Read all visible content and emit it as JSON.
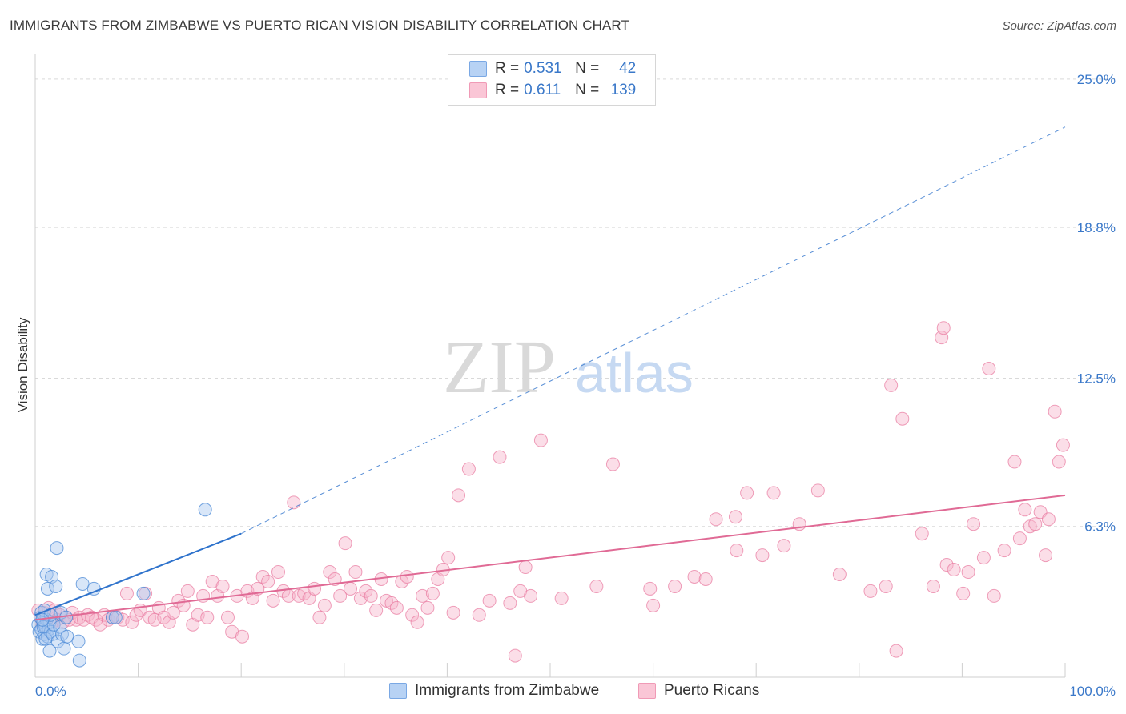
{
  "title": "IMMIGRANTS FROM ZIMBABWE VS PUERTO RICAN VISION DISABILITY CORRELATION CHART",
  "source": "Source: ZipAtlas.com",
  "watermark": {
    "zip": "ZIP",
    "atlas": "atlas"
  },
  "colors": {
    "blue": "#4a88d6",
    "blue_fill": "#a8c8f0",
    "blue_line": "#2f73cc",
    "pink": "#e8789e",
    "pink_fill": "#f6b6cb",
    "pink_line": "#e06a95",
    "tick_label": "#3a78c9",
    "grid": "#d9d9d9"
  },
  "legend": {
    "rows": [
      {
        "r_label": "R =",
        "r_value": "0.531",
        "n_label": "N =",
        "n_value": "42"
      },
      {
        "r_label": "R =",
        "r_value": "0.611",
        "n_label": "N =",
        "n_value": "139"
      }
    ]
  },
  "bottom_legend": [
    "Immigrants from Zimbabwe",
    "Puerto Ricans"
  ],
  "chart_data": {
    "type": "scatter",
    "title": "IMMIGRANTS FROM ZIMBABWE VS PUERTO RICAN VISION DISABILITY CORRELATION CHART",
    "xlabel": "",
    "ylabel": "Vision Disability",
    "xlim": [
      0,
      100
    ],
    "ylim": [
      0,
      25.9
    ],
    "x_tick_labels": [
      "0.0%",
      "100.0%"
    ],
    "y_ticks": [
      6.3,
      12.5,
      18.8,
      25.0
    ],
    "y_tick_labels": [
      "6.3%",
      "12.5%",
      "18.8%",
      "25.0%"
    ],
    "series": [
      {
        "name": "Immigrants from Zimbabwe",
        "R": 0.531,
        "N": 42,
        "trend": {
          "x0": 0,
          "y0": 2.6,
          "x1": 20,
          "y1": 6.0,
          "dashed_to_x": 100,
          "dashed_to_y": 23.0
        },
        "points": [
          [
            0.3,
            2.2
          ],
          [
            0.4,
            1.9
          ],
          [
            0.5,
            2.5
          ],
          [
            0.6,
            2.0
          ],
          [
            0.7,
            1.6
          ],
          [
            0.8,
            2.3
          ],
          [
            0.9,
            1.8
          ],
          [
            1.0,
            2.1
          ],
          [
            1.1,
            2.4
          ],
          [
            1.2,
            1.7
          ],
          [
            1.3,
            2.0
          ],
          [
            1.4,
            2.3
          ],
          [
            1.5,
            1.9
          ],
          [
            0.6,
            2.7
          ],
          [
            0.8,
            2.1
          ],
          [
            1.0,
            1.6
          ],
          [
            1.2,
            3.7
          ],
          [
            1.1,
            4.3
          ],
          [
            1.4,
            1.1
          ],
          [
            1.6,
            4.2
          ],
          [
            1.7,
            1.8
          ],
          [
            1.8,
            2.2
          ],
          [
            2.0,
            3.8
          ],
          [
            2.1,
            5.4
          ],
          [
            2.2,
            1.5
          ],
          [
            2.4,
            2.1
          ],
          [
            2.5,
            2.7
          ],
          [
            2.6,
            1.8
          ],
          [
            2.8,
            1.2
          ],
          [
            3.0,
            2.5
          ],
          [
            3.1,
            1.7
          ],
          [
            4.2,
            1.5
          ],
          [
            4.3,
            0.7
          ],
          [
            4.6,
            3.9
          ],
          [
            5.7,
            3.7
          ],
          [
            7.5,
            2.5
          ],
          [
            7.8,
            2.5
          ],
          [
            10.5,
            3.5
          ],
          [
            16.5,
            7.0
          ],
          [
            0.9,
            2.8
          ],
          [
            1.5,
            2.6
          ],
          [
            0.7,
            2.4
          ]
        ]
      },
      {
        "name": "Puerto Ricans",
        "R": 0.611,
        "N": 139,
        "trend": {
          "x0": 0,
          "y0": 2.4,
          "x1": 100,
          "y1": 7.6
        },
        "points": [
          [
            0.3,
            2.8
          ],
          [
            0.5,
            2.5
          ],
          [
            0.7,
            2.2
          ],
          [
            0.9,
            2.7
          ],
          [
            1.1,
            2.4
          ],
          [
            1.3,
            2.9
          ],
          [
            1.5,
            2.6
          ],
          [
            1.7,
            2.3
          ],
          [
            1.9,
            2.8
          ],
          [
            2.1,
            2.4
          ],
          [
            2.4,
            2.6
          ],
          [
            2.7,
            2.3
          ],
          [
            3.0,
            2.5
          ],
          [
            3.3,
            2.4
          ],
          [
            3.6,
            2.7
          ],
          [
            4.0,
            2.4
          ],
          [
            4.3,
            2.5
          ],
          [
            4.7,
            2.4
          ],
          [
            5.1,
            2.6
          ],
          [
            5.5,
            2.5
          ],
          [
            5.9,
            2.4
          ],
          [
            6.3,
            2.2
          ],
          [
            6.7,
            2.6
          ],
          [
            7.1,
            2.4
          ],
          [
            7.5,
            2.5
          ],
          [
            8.0,
            2.5
          ],
          [
            8.5,
            2.4
          ],
          [
            8.9,
            3.5
          ],
          [
            9.4,
            2.3
          ],
          [
            9.8,
            2.6
          ],
          [
            10.2,
            2.8
          ],
          [
            10.7,
            3.5
          ],
          [
            11.1,
            2.5
          ],
          [
            11.6,
            2.4
          ],
          [
            12.0,
            2.9
          ],
          [
            12.5,
            2.5
          ],
          [
            13.0,
            2.3
          ],
          [
            13.4,
            2.7
          ],
          [
            13.9,
            3.2
          ],
          [
            14.4,
            3.0
          ],
          [
            14.8,
            3.6
          ],
          [
            15.3,
            2.2
          ],
          [
            15.8,
            2.6
          ],
          [
            16.3,
            3.4
          ],
          [
            16.7,
            2.5
          ],
          [
            17.2,
            4.0
          ],
          [
            17.7,
            3.4
          ],
          [
            18.2,
            3.8
          ],
          [
            18.7,
            2.5
          ],
          [
            19.1,
            1.9
          ],
          [
            19.6,
            3.4
          ],
          [
            20.1,
            1.7
          ],
          [
            20.6,
            3.6
          ],
          [
            21.1,
            3.3
          ],
          [
            21.6,
            3.7
          ],
          [
            22.1,
            4.2
          ],
          [
            22.6,
            4.0
          ],
          [
            23.1,
            3.2
          ],
          [
            23.6,
            4.4
          ],
          [
            24.1,
            3.6
          ],
          [
            24.6,
            3.4
          ],
          [
            25.1,
            7.3
          ],
          [
            25.6,
            3.4
          ],
          [
            26.1,
            3.5
          ],
          [
            26.6,
            3.3
          ],
          [
            27.1,
            3.7
          ],
          [
            27.6,
            2.5
          ],
          [
            28.1,
            3.0
          ],
          [
            28.6,
            4.4
          ],
          [
            29.1,
            4.1
          ],
          [
            29.6,
            3.4
          ],
          [
            30.1,
            5.6
          ],
          [
            30.6,
            3.7
          ],
          [
            31.1,
            4.4
          ],
          [
            31.6,
            3.3
          ],
          [
            32.1,
            3.6
          ],
          [
            32.6,
            3.4
          ],
          [
            33.1,
            2.8
          ],
          [
            33.6,
            4.1
          ],
          [
            34.1,
            3.2
          ],
          [
            34.6,
            3.1
          ],
          [
            35.1,
            2.9
          ],
          [
            35.6,
            4.0
          ],
          [
            36.1,
            4.2
          ],
          [
            36.6,
            2.6
          ],
          [
            37.1,
            2.3
          ],
          [
            37.6,
            3.4
          ],
          [
            38.1,
            2.9
          ],
          [
            38.6,
            3.5
          ],
          [
            39.1,
            4.1
          ],
          [
            39.6,
            4.5
          ],
          [
            40.1,
            5.0
          ],
          [
            40.6,
            2.7
          ],
          [
            41.1,
            7.6
          ],
          [
            42.1,
            8.7
          ],
          [
            43.1,
            2.6
          ],
          [
            44.1,
            3.2
          ],
          [
            45.1,
            9.2
          ],
          [
            46.1,
            3.1
          ],
          [
            46.6,
            0.9
          ],
          [
            47.1,
            3.6
          ],
          [
            47.6,
            4.6
          ],
          [
            48.1,
            3.4
          ],
          [
            49.1,
            9.9
          ],
          [
            51.1,
            3.3
          ],
          [
            54.5,
            3.8
          ],
          [
            56.1,
            8.9
          ],
          [
            59.7,
            3.7
          ],
          [
            62.1,
            3.8
          ],
          [
            64.0,
            4.2
          ],
          [
            65.1,
            4.1
          ],
          [
            66.1,
            6.6
          ],
          [
            68.1,
            5.3
          ],
          [
            69.1,
            7.7
          ],
          [
            70.6,
            5.1
          ],
          [
            71.7,
            7.7
          ],
          [
            72.7,
            5.5
          ],
          [
            74.2,
            6.4
          ],
          [
            76.0,
            7.8
          ],
          [
            78.1,
            4.3
          ],
          [
            81.1,
            3.6
          ],
          [
            82.6,
            3.8
          ],
          [
            83.1,
            12.2
          ],
          [
            83.6,
            1.1
          ],
          [
            84.2,
            10.8
          ],
          [
            86.1,
            6.0
          ],
          [
            87.2,
            3.8
          ],
          [
            88.0,
            14.2
          ],
          [
            88.2,
            14.6
          ],
          [
            88.5,
            4.7
          ],
          [
            89.2,
            4.5
          ],
          [
            90.1,
            3.5
          ],
          [
            90.6,
            4.4
          ],
          [
            91.1,
            6.4
          ],
          [
            92.1,
            5.0
          ],
          [
            92.6,
            12.9
          ],
          [
            93.1,
            3.4
          ],
          [
            94.1,
            5.3
          ],
          [
            95.1,
            9.0
          ],
          [
            95.6,
            5.8
          ],
          [
            96.1,
            7.0
          ],
          [
            96.6,
            6.3
          ],
          [
            97.1,
            6.4
          ],
          [
            97.6,
            6.9
          ],
          [
            98.1,
            5.1
          ],
          [
            98.4,
            6.6
          ],
          [
            99.0,
            11.1
          ],
          [
            99.4,
            9.0
          ],
          [
            99.8,
            9.7
          ],
          [
            68.0,
            6.7
          ],
          [
            60.0,
            3.0
          ]
        ]
      }
    ]
  }
}
